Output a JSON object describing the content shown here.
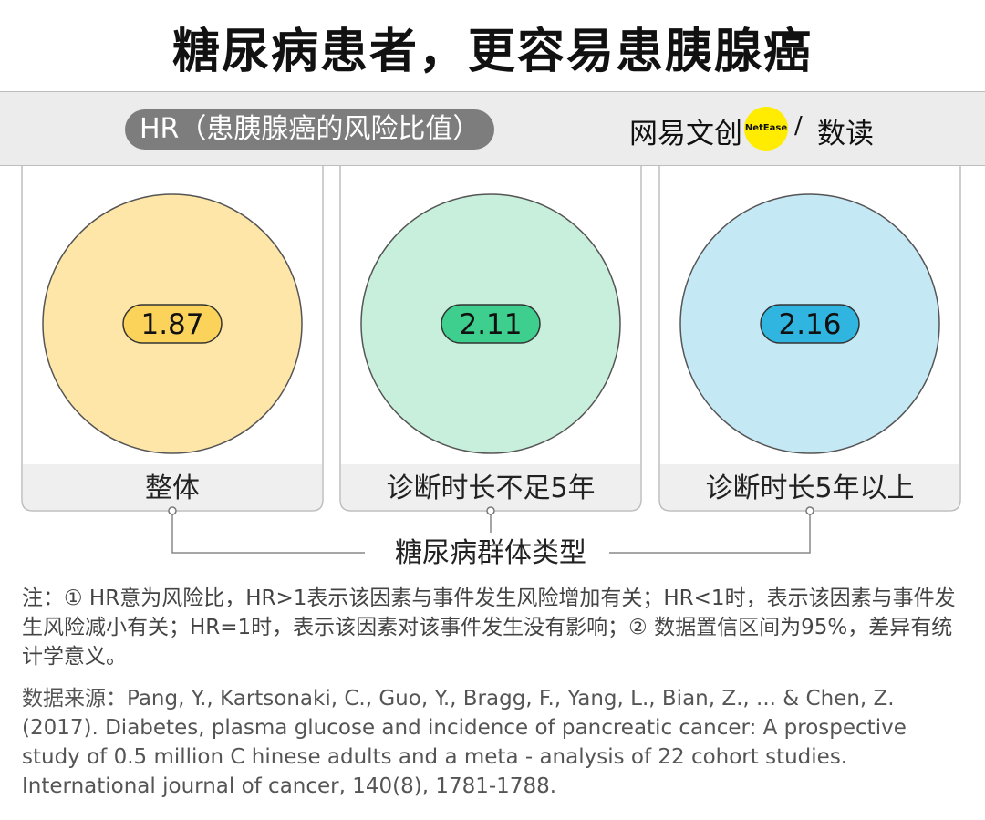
{
  "title": "糖尿病患者，更容易患胰腺癌",
  "metric_label": "HR（患胰腺癌的风险比值）",
  "logo": {
    "name": "网易文创",
    "badge": "NetEase",
    "separator": "/",
    "sub": "数读"
  },
  "chart_data": {
    "type": "bubble",
    "title": "糖尿病患者，更容易患胰腺癌",
    "value_label": "HR（患胰腺癌的风险比值）",
    "axis_label": "糖尿病群体类型",
    "categories": [
      "整体",
      "诊断时长不足5年",
      "诊断时长5年以上"
    ],
    "values": [
      1.87,
      2.11,
      2.16
    ],
    "circle_fills": [
      "#fde6a8",
      "#c7efdc",
      "#c5e8f5"
    ],
    "pill_fills": [
      "#fbd35a",
      "#3ecf8e",
      "#2fb5e0"
    ]
  },
  "note": "注：① HR意为风险比，HR>1表示该因素与事件发生风险增加有关；HR<1时，表示该因素与事件发生风险减小有关；HR=1时，表示该因素对该事件发生没有影响；② 数据置信区间为95%，差异有统计学意义。",
  "source": "数据来源：Pang, Y., Kartsonaki, C., Guo, Y., Bragg, F., Yang, L., Bian, Z., ... & Chen, Z. (2017). Diabetes, plasma glucose and incidence of pancreatic cancer: A prospective study of 0.5 million C hinese adults and a meta - analysis of 22 cohort studies. International journal of cancer, 140(8), 1781-1788."
}
